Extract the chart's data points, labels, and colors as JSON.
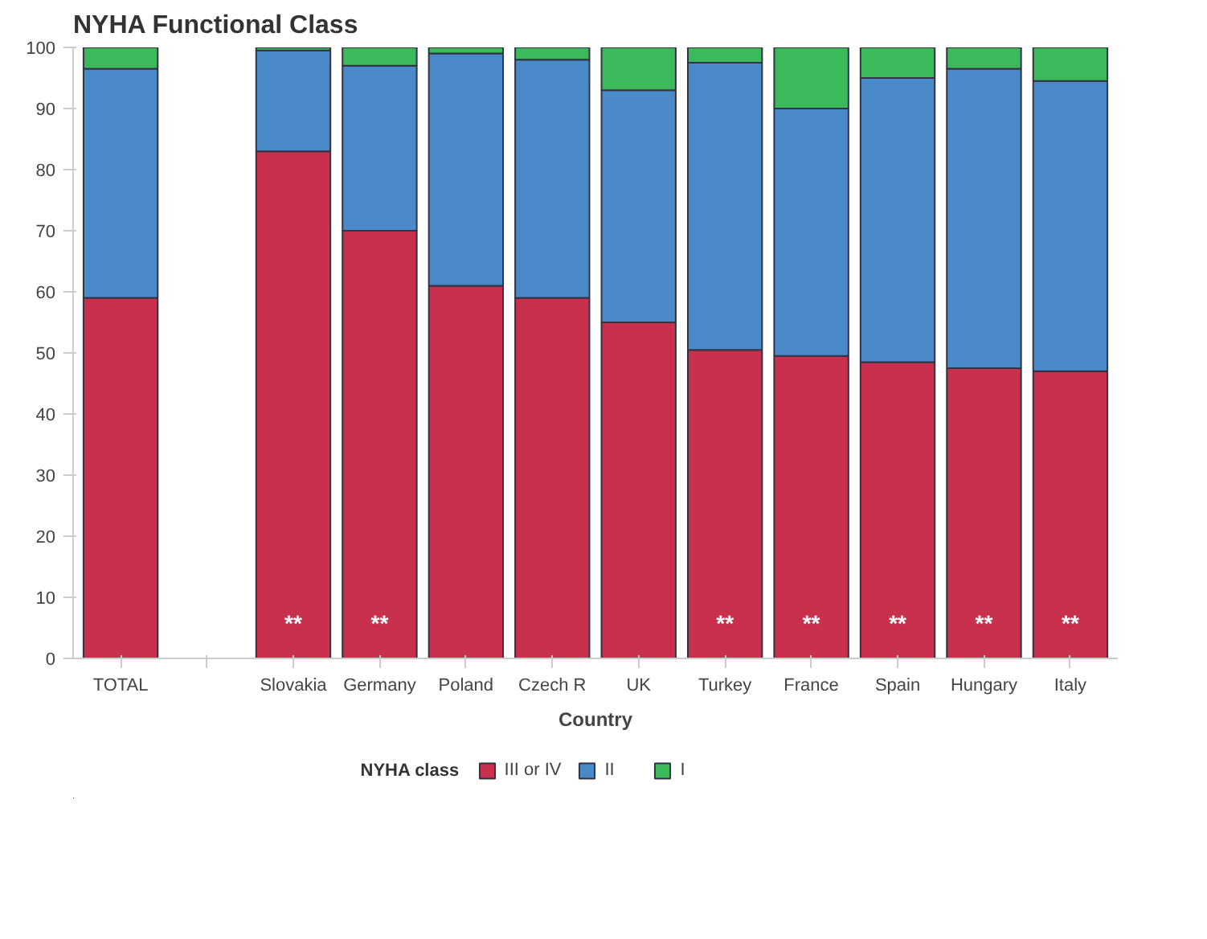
{
  "chart_data": {
    "type": "bar",
    "title": "NYHA Functional Class",
    "xlabel": "Country",
    "legend_title": "NYHA class",
    "categories": [
      "TOTAL",
      null,
      "Slovakia",
      "Germany",
      "Poland",
      "Czech R",
      "UK",
      "Turkey",
      "France",
      "Spain",
      "Hungary",
      "Italy"
    ],
    "stacked": true,
    "series": [
      {
        "name": "III or IV",
        "color": "#c8304e",
        "values": [
          59,
          0,
          83,
          70,
          61,
          59,
          55,
          50.5,
          49.5,
          48.5,
          47.5,
          47
        ],
        "value_labels": [
          null,
          null,
          "**",
          "**",
          null,
          null,
          null,
          "**",
          "**",
          "**",
          "**",
          "**"
        ]
      },
      {
        "name": "II",
        "color": "#4a8ac8",
        "values": [
          37.5,
          0,
          16.5,
          27,
          38,
          39,
          38,
          47,
          40.5,
          46.5,
          49,
          47.5
        ]
      },
      {
        "name": "I",
        "color": "#3cb95a",
        "values": [
          3.5,
          0,
          0.5,
          3,
          1,
          2,
          7,
          2.5,
          10,
          5,
          3.5,
          5.5
        ]
      }
    ],
    "ylim": [
      0,
      100
    ],
    "yticks": [
      0,
      10,
      20,
      30,
      40,
      50,
      60,
      70,
      80,
      90,
      100
    ],
    "grid": false,
    "legend": "bottom"
  }
}
